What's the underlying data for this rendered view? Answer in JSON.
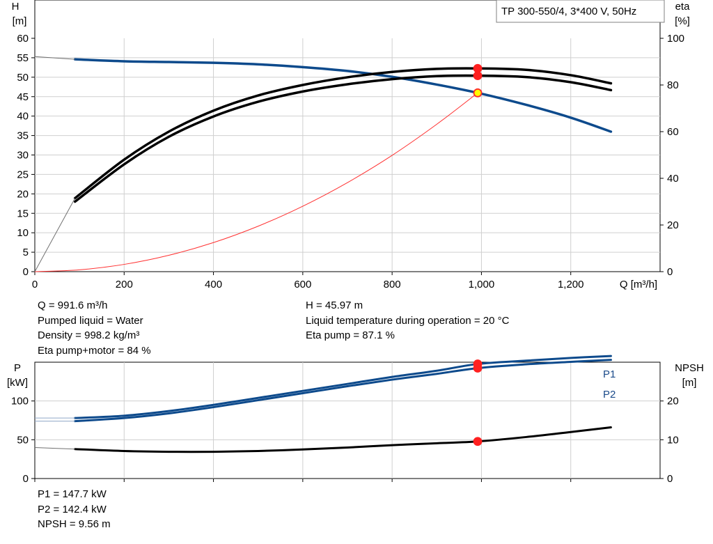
{
  "chart_data": [
    {
      "type": "line",
      "title": "TP 300-550/4, 3*400 V, 50Hz",
      "xlabel": "Q [m³/h]",
      "ylabel_left_lines": [
        "H",
        "[m]"
      ],
      "ylabel_right_lines": [
        "eta",
        "[%]"
      ],
      "xlim": [
        0,
        1400
      ],
      "ylim_left": [
        0,
        60
      ],
      "ylim_right": [
        0,
        100
      ],
      "x_ticks": [
        0,
        200,
        400,
        600,
        800,
        1000,
        1200
      ],
      "x_tick_labels": [
        "0",
        "200",
        "400",
        "600",
        "800",
        "1,000",
        "1,200"
      ],
      "y_left_ticks": [
        0,
        5,
        10,
        15,
        20,
        25,
        30,
        35,
        40,
        45,
        50,
        55,
        60
      ],
      "y_left_tick_labels": [
        "0",
        "5",
        "10",
        "15",
        "20",
        "25",
        "30",
        "35",
        "40",
        "45",
        "50",
        "55",
        "60"
      ],
      "y_right_ticks": [
        0,
        20,
        40,
        60,
        80,
        100
      ],
      "y_right_tick_labels": [
        "0",
        "20",
        "40",
        "60",
        "80",
        "100"
      ],
      "grid": true,
      "series": [
        {
          "axis": "left",
          "color": "#0d4a8c",
          "x": [
            0,
            90,
            200,
            300,
            400,
            500,
            600,
            700,
            800,
            900,
            991.6,
            1100,
            1200,
            1290
          ],
          "y": [
            55.3,
            54.6,
            54.1,
            53.9,
            53.7,
            53.3,
            52.6,
            51.6,
            50.1,
            48.1,
            45.97,
            42.9,
            39.6,
            36.0
          ]
        },
        {
          "axis": "right",
          "color": "#000000",
          "x": [
            0,
            90,
            200,
            300,
            400,
            500,
            600,
            700,
            800,
            900,
            991.6,
            1100,
            1200,
            1290
          ],
          "y": [
            0,
            31.5,
            48,
            60,
            69,
            75.5,
            80,
            83.3,
            85.6,
            86.9,
            87.1,
            86.5,
            84.2,
            80.7
          ]
        },
        {
          "axis": "right",
          "color": "#000000",
          "x": [
            0,
            90,
            200,
            300,
            400,
            500,
            600,
            700,
            800,
            900,
            991.6,
            1100,
            1200,
            1290
          ],
          "y": [
            0,
            30,
            46,
            57.8,
            66.5,
            72.8,
            77.2,
            80.3,
            82.5,
            83.8,
            84,
            83.4,
            81.2,
            77.8
          ]
        },
        {
          "axis": "left",
          "color": "#ff3030",
          "x": [
            0,
            100,
            200,
            300,
            400,
            500,
            600,
            700,
            800,
            900,
            991.6
          ],
          "y": [
            0,
            0.47,
            1.87,
            4.21,
            7.48,
            11.69,
            16.83,
            22.9,
            29.9,
            37.9,
            45.97
          ]
        }
      ],
      "markers": [
        {
          "x": 991.6,
          "y": 45.97,
          "axis": "left",
          "fill": "#ffff00",
          "stroke": "#ff2a2a"
        },
        {
          "x": 991.6,
          "y": 87.1,
          "axis": "right",
          "fill": "#ff2020",
          "stroke": "#ff2020"
        },
        {
          "x": 991.6,
          "y": 84,
          "axis": "right",
          "fill": "#ff2020",
          "stroke": "#ff2020"
        }
      ]
    },
    {
      "type": "line",
      "xlim": [
        0,
        1400
      ],
      "ylim_left": [
        0,
        150
      ],
      "ylim_right": [
        0,
        30
      ],
      "ylabel_left_lines": [
        "P",
        "[kW]"
      ],
      "ylabel_right_lines": [
        "NPSH",
        "[m]"
      ],
      "y_left_ticks": [
        0,
        50,
        100
      ],
      "y_left_tick_labels": [
        "0",
        "50",
        "100"
      ],
      "y_right_ticks": [
        0,
        10,
        20
      ],
      "y_right_tick_labels": [
        "0",
        "10",
        "20"
      ],
      "x_ticks": [
        0,
        200,
        400,
        600,
        800,
        1000,
        1200
      ],
      "grid": true,
      "series": [
        {
          "name": "P1",
          "axis": "left",
          "color": "#0d4a8c",
          "x": [
            90,
            200,
            300,
            400,
            500,
            600,
            700,
            800,
            900,
            991.6,
            1100,
            1200,
            1290
          ],
          "y": [
            78,
            81,
            87,
            95,
            104,
            113,
            122,
            131,
            139,
            147.7,
            152,
            155.5,
            158
          ]
        },
        {
          "name": "P2",
          "axis": "left",
          "color": "#0d4a8c",
          "x": [
            90,
            200,
            300,
            400,
            500,
            600,
            700,
            800,
            900,
            991.6,
            1100,
            1200,
            1290
          ],
          "y": [
            74,
            78,
            84,
            92,
            101,
            110,
            119,
            127.5,
            135,
            142.4,
            147.3,
            150.5,
            153
          ]
        },
        {
          "axis": "right",
          "color": "#000000",
          "x": [
            90,
            200,
            300,
            400,
            500,
            600,
            700,
            800,
            900,
            991.6,
            1100,
            1200,
            1290
          ],
          "y": [
            7.6,
            7.1,
            6.9,
            6.9,
            7.1,
            7.5,
            8.0,
            8.6,
            9.1,
            9.56,
            10.7,
            12.0,
            13.2
          ]
        }
      ],
      "markers": [
        {
          "x": 991.6,
          "y": 147.7,
          "axis": "left",
          "fill": "#ff2020",
          "stroke": "#ff2020"
        },
        {
          "x": 991.6,
          "y": 142.4,
          "axis": "left",
          "fill": "#ff2020",
          "stroke": "#ff2020"
        },
        {
          "x": 991.6,
          "y": 9.56,
          "axis": "right",
          "fill": "#ff2020",
          "stroke": "#ff2020"
        }
      ]
    }
  ],
  "duty_info_left": [
    "Q = 991.6 m³/h",
    "Pumped liquid = Water",
    "Density = 998.2 kg/m³",
    "Eta pump+motor = 84 %"
  ],
  "duty_info_right": [
    "H = 45.97 m",
    "Liquid temperature during operation = 20 °C",
    "Eta pump = 87.1 %"
  ],
  "power_info": [
    "P1 = 147.7 kW",
    "P2 = 142.4 kW",
    "NPSH = 9.56 m"
  ]
}
